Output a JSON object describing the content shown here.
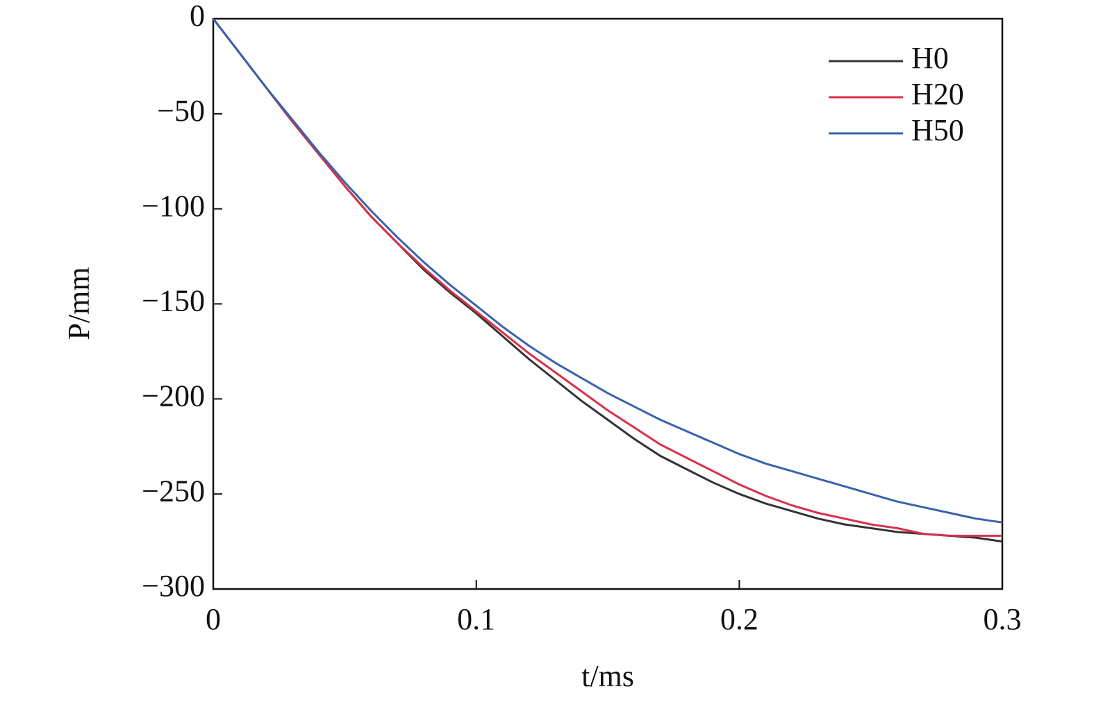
{
  "chart_data": {
    "type": "line",
    "xlabel": "t/ms",
    "ylabel": "P/mm",
    "x": [
      0,
      0.01,
      0.02,
      0.03,
      0.04,
      0.05,
      0.06,
      0.07,
      0.08,
      0.09,
      0.1,
      0.11,
      0.12,
      0.13,
      0.14,
      0.15,
      0.16,
      0.17,
      0.18,
      0.19,
      0.2,
      0.21,
      0.22,
      0.23,
      0.24,
      0.25,
      0.26,
      0.27,
      0.28,
      0.29,
      0.3
    ],
    "series": [
      {
        "name": "H0",
        "color": "#333333",
        "values": [
          0,
          -18,
          -36,
          -54,
          -71,
          -88,
          -104,
          -118,
          -132,
          -144,
          -155,
          -167,
          -179,
          -190,
          -201,
          -211,
          -221,
          -230,
          -237,
          -244,
          -250,
          -255,
          -259,
          -263,
          -266,
          -268,
          -270,
          -271,
          -272,
          -273,
          -275
        ]
      },
      {
        "name": "H20",
        "color": "#d9304a",
        "values": [
          0,
          -18,
          -36,
          -54,
          -71,
          -88,
          -104,
          -118,
          -131,
          -143,
          -154,
          -165,
          -176,
          -186,
          -196,
          -206,
          -215,
          -224,
          -231,
          -238,
          -245,
          -251,
          -256,
          -260,
          -263,
          -266,
          -268,
          -271,
          -272,
          -272,
          -272
        ]
      },
      {
        "name": "H50",
        "color": "#3a62ad",
        "values": [
          0,
          -18,
          -36,
          -53,
          -70,
          -86,
          -101,
          -115,
          -128,
          -140,
          -151,
          -162,
          -172,
          -181,
          -189,
          -197,
          -204,
          -211,
          -217,
          -223,
          -229,
          -234,
          -238,
          -242,
          -246,
          -250,
          -254,
          -257,
          -260,
          -263,
          -265
        ]
      }
    ],
    "xlim": [
      0,
      0.3
    ],
    "xticks": [
      0,
      0.1,
      0.2,
      0.3
    ],
    "ylim": [
      -300,
      0
    ],
    "yticks": [
      {
        "value": -300,
        "label": "−300"
      },
      {
        "value": -250,
        "label": "−250"
      },
      {
        "value": -200,
        "label": "−200"
      },
      {
        "value": -150,
        "label": "−150"
      },
      {
        "value": -100,
        "label": "−100"
      },
      {
        "value": -50,
        "label": "−50"
      },
      0
    ],
    "legend": "upper-right",
    "grid": false
  }
}
